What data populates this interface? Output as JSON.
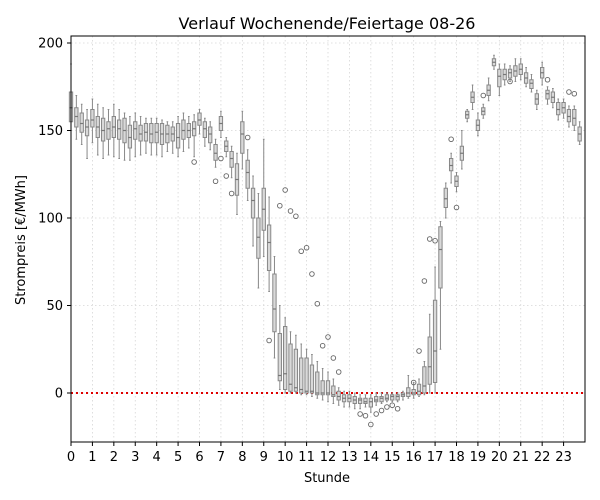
{
  "chart_data": {
    "type": "box",
    "title": "Verlauf Wochenende/Feiertage 08-26",
    "xlabel": "Stunde",
    "ylabel": "Strompreis [€/MWh]",
    "xlim": [
      0,
      24
    ],
    "ylim": [
      -28,
      204
    ],
    "x_ticks": [
      "0",
      "1",
      "2",
      "3",
      "4",
      "5",
      "6",
      "7",
      "8",
      "9",
      "10",
      "11",
      "12",
      "13",
      "14",
      "15",
      "16",
      "17",
      "18",
      "19",
      "20",
      "21",
      "22",
      "23"
    ],
    "y_ticks": [
      0,
      50,
      100,
      150,
      200
    ],
    "grid": true,
    "reference_line": {
      "y": 0,
      "color": "#e00000",
      "style": "dotted"
    },
    "colors": {
      "box_fill": "#d9d9d9",
      "box_edge": "#888888",
      "grid": "#d6d6d6",
      "reference": "#e00000"
    },
    "interval_hours": 0.25,
    "boxes": [
      {
        "x": 0.0,
        "q1": 155,
        "median": 163,
        "q3": 172,
        "whisker_low": 150,
        "whisker_high": 188,
        "fliers": []
      },
      {
        "x": 0.25,
        "q1": 152,
        "median": 158,
        "q3": 163,
        "whisker_low": 145,
        "whisker_high": 170,
        "fliers": []
      },
      {
        "x": 0.5,
        "q1": 149,
        "median": 154,
        "q3": 160,
        "whisker_low": 142,
        "whisker_high": 165,
        "fliers": []
      },
      {
        "x": 0.75,
        "q1": 147,
        "median": 152,
        "q3": 156,
        "whisker_low": 134,
        "whisker_high": 162,
        "fliers": []
      },
      {
        "x": 1.0,
        "q1": 152,
        "median": 156,
        "q3": 162,
        "whisker_low": 143,
        "whisker_high": 168,
        "fliers": []
      },
      {
        "x": 1.25,
        "q1": 146,
        "median": 152,
        "q3": 158,
        "whisker_low": 136,
        "whisker_high": 165,
        "fliers": []
      },
      {
        "x": 1.5,
        "q1": 144,
        "median": 150,
        "q3": 157,
        "whisker_low": 134,
        "whisker_high": 163,
        "fliers": []
      },
      {
        "x": 1.75,
        "q1": 145,
        "median": 151,
        "q3": 155,
        "whisker_low": 136,
        "whisker_high": 162,
        "fliers": []
      },
      {
        "x": 2.0,
        "q1": 146,
        "median": 152,
        "q3": 158,
        "whisker_low": 135,
        "whisker_high": 165,
        "fliers": []
      },
      {
        "x": 2.25,
        "q1": 145,
        "median": 151,
        "q3": 156,
        "whisker_low": 134,
        "whisker_high": 162,
        "fliers": []
      },
      {
        "x": 2.5,
        "q1": 143,
        "median": 150,
        "q3": 157,
        "whisker_low": 133,
        "whisker_high": 160,
        "fliers": []
      },
      {
        "x": 2.75,
        "q1": 140,
        "median": 146,
        "q3": 153,
        "whisker_low": 133,
        "whisker_high": 158,
        "fliers": []
      },
      {
        "x": 3.0,
        "q1": 145,
        "median": 151,
        "q3": 155,
        "whisker_low": 135,
        "whisker_high": 160,
        "fliers": []
      },
      {
        "x": 3.25,
        "q1": 144,
        "median": 148,
        "q3": 153,
        "whisker_low": 136,
        "whisker_high": 158,
        "fliers": []
      },
      {
        "x": 3.5,
        "q1": 144,
        "median": 149,
        "q3": 154,
        "whisker_low": 137,
        "whisker_high": 157,
        "fliers": []
      },
      {
        "x": 3.75,
        "q1": 143,
        "median": 148,
        "q3": 154,
        "whisker_low": 136,
        "whisker_high": 157,
        "fliers": []
      },
      {
        "x": 4.0,
        "q1": 143,
        "median": 149,
        "q3": 154,
        "whisker_low": 136,
        "whisker_high": 157,
        "fliers": []
      },
      {
        "x": 4.25,
        "q1": 142,
        "median": 148,
        "q3": 154,
        "whisker_low": 135,
        "whisker_high": 156,
        "fliers": []
      },
      {
        "x": 4.5,
        "q1": 143,
        "median": 148,
        "q3": 153,
        "whisker_low": 138,
        "whisker_high": 155,
        "fliers": []
      },
      {
        "x": 4.75,
        "q1": 144,
        "median": 148,
        "q3": 152,
        "whisker_low": 137,
        "whisker_high": 155,
        "fliers": []
      },
      {
        "x": 5.0,
        "q1": 140,
        "median": 146,
        "q3": 154,
        "whisker_low": 135,
        "whisker_high": 158,
        "fliers": []
      },
      {
        "x": 5.25,
        "q1": 145,
        "median": 150,
        "q3": 156,
        "whisker_low": 138,
        "whisker_high": 160,
        "fliers": []
      },
      {
        "x": 5.5,
        "q1": 146,
        "median": 150,
        "q3": 154,
        "whisker_low": 140,
        "whisker_high": 158,
        "fliers": []
      },
      {
        "x": 5.75,
        "q1": 147,
        "median": 151,
        "q3": 155,
        "whisker_low": 135,
        "whisker_high": 159,
        "fliers": [
          132
        ]
      },
      {
        "x": 6.0,
        "q1": 153,
        "median": 156,
        "q3": 160,
        "whisker_low": 148,
        "whisker_high": 162,
        "fliers": []
      },
      {
        "x": 6.25,
        "q1": 146,
        "median": 151,
        "q3": 155,
        "whisker_low": 141,
        "whisker_high": 157,
        "fliers": []
      },
      {
        "x": 6.5,
        "q1": 143,
        "median": 148,
        "q3": 152,
        "whisker_low": 139,
        "whisker_high": 155,
        "fliers": []
      },
      {
        "x": 6.75,
        "q1": 133,
        "median": 137,
        "q3": 142,
        "whisker_low": 129,
        "whisker_high": 145,
        "fliers": [
          121
        ]
      },
      {
        "x": 7.0,
        "q1": 150,
        "median": 154,
        "q3": 158,
        "whisker_low": 146,
        "whisker_high": 161,
        "fliers": [
          134
        ]
      },
      {
        "x": 7.25,
        "q1": 138,
        "median": 141,
        "q3": 144,
        "whisker_low": 135,
        "whisker_high": 146,
        "fliers": [
          124
        ]
      },
      {
        "x": 7.5,
        "q1": 129,
        "median": 134,
        "q3": 138,
        "whisker_low": 123,
        "whisker_high": 141,
        "fliers": [
          114
        ]
      },
      {
        "x": 7.75,
        "q1": 113,
        "median": 122,
        "q3": 131,
        "whisker_low": 102,
        "whisker_high": 137,
        "fliers": []
      },
      {
        "x": 8.0,
        "q1": 137,
        "median": 148,
        "q3": 155,
        "whisker_low": 128,
        "whisker_high": 161,
        "fliers": []
      },
      {
        "x": 8.25,
        "q1": 117,
        "median": 126,
        "q3": 133,
        "whisker_low": 110,
        "whisker_high": 139,
        "fliers": [
          146
        ]
      },
      {
        "x": 8.5,
        "q1": 100,
        "median": 110,
        "q3": 117,
        "whisker_low": 84,
        "whisker_high": 124,
        "fliers": []
      },
      {
        "x": 8.75,
        "q1": 77,
        "median": 89,
        "q3": 100,
        "whisker_low": 60,
        "whisker_high": 114,
        "fliers": []
      },
      {
        "x": 9.0,
        "q1": 93,
        "median": 105,
        "q3": 117,
        "whisker_low": 78,
        "whisker_high": 145,
        "fliers": []
      },
      {
        "x": 9.25,
        "q1": 70,
        "median": 86,
        "q3": 96,
        "whisker_low": 58,
        "whisker_high": 112,
        "fliers": [
          30
        ]
      },
      {
        "x": 9.5,
        "q1": 35,
        "median": 48,
        "q3": 68,
        "whisker_low": 20,
        "whisker_high": 78,
        "fliers": []
      },
      {
        "x": 9.75,
        "q1": 7,
        "median": 10,
        "q3": 34,
        "whisker_low": 2,
        "whisker_high": 50,
        "fliers": [
          107
        ]
      },
      {
        "x": 10.0,
        "q1": 2,
        "median": 11,
        "q3": 38,
        "whisker_low": 0,
        "whisker_high": 43,
        "fliers": [
          116
        ]
      },
      {
        "x": 10.25,
        "q1": 1,
        "median": 5,
        "q3": 28,
        "whisker_low": 0,
        "whisker_high": 35,
        "fliers": [
          104
        ]
      },
      {
        "x": 10.5,
        "q1": 1,
        "median": 3,
        "q3": 25,
        "whisker_low": 0,
        "whisker_high": 33,
        "fliers": [
          101
        ]
      },
      {
        "x": 10.75,
        "q1": 0,
        "median": 2,
        "q3": 20,
        "whisker_low": -1,
        "whisker_high": 28,
        "fliers": [
          81
        ]
      },
      {
        "x": 11.0,
        "q1": 0,
        "median": 1,
        "q3": 20,
        "whisker_low": -1,
        "whisker_high": 25,
        "fliers": [
          83
        ]
      },
      {
        "x": 11.25,
        "q1": 0,
        "median": 1,
        "q3": 16,
        "whisker_low": -2,
        "whisker_high": 22,
        "fliers": [
          68
        ]
      },
      {
        "x": 11.5,
        "q1": -1,
        "median": 0,
        "q3": 12,
        "whisker_low": -3,
        "whisker_high": 18,
        "fliers": [
          51
        ]
      },
      {
        "x": 11.75,
        "q1": -1,
        "median": 0,
        "q3": 7,
        "whisker_low": -4,
        "whisker_high": 14,
        "fliers": [
          27
        ]
      },
      {
        "x": 12.0,
        "q1": -1,
        "median": 0,
        "q3": 7,
        "whisker_low": -5,
        "whisker_high": 12,
        "fliers": [
          32
        ]
      },
      {
        "x": 12.25,
        "q1": -2,
        "median": -1,
        "q3": 4,
        "whisker_low": -6,
        "whisker_high": 8,
        "fliers": [
          20
        ]
      },
      {
        "x": 12.5,
        "q1": -4,
        "median": -2,
        "q3": 1,
        "whisker_low": -7,
        "whisker_high": 3,
        "fliers": [
          12
        ]
      },
      {
        "x": 12.75,
        "q1": -5,
        "median": -3,
        "q3": -1,
        "whisker_low": -8,
        "whisker_high": 1,
        "fliers": []
      },
      {
        "x": 13.0,
        "q1": -5,
        "median": -3,
        "q3": -1,
        "whisker_low": -8,
        "whisker_high": 1,
        "fliers": []
      },
      {
        "x": 13.25,
        "q1": -6,
        "median": -4,
        "q3": -2,
        "whisker_low": -9,
        "whisker_high": 0,
        "fliers": []
      },
      {
        "x": 13.5,
        "q1": -6,
        "median": -4,
        "q3": -3,
        "whisker_low": -9,
        "whisker_high": -1,
        "fliers": [
          -12
        ]
      },
      {
        "x": 13.75,
        "q1": -6,
        "median": -5,
        "q3": -3,
        "whisker_low": -8,
        "whisker_high": -1,
        "fliers": [
          -13
        ]
      },
      {
        "x": 14.0,
        "q1": -8,
        "median": -5,
        "q3": -3,
        "whisker_low": -11,
        "whisker_high": -1,
        "fliers": [
          -18
        ]
      },
      {
        "x": 14.25,
        "q1": -5,
        "median": -4,
        "q3": -2,
        "whisker_low": -7,
        "whisker_high": 0,
        "fliers": [
          -12
        ]
      },
      {
        "x": 14.5,
        "q1": -5,
        "median": -3,
        "q3": -2,
        "whisker_low": -6,
        "whisker_high": 0,
        "fliers": [
          -10
        ]
      },
      {
        "x": 14.75,
        "q1": -4,
        "median": -3,
        "q3": -1,
        "whisker_low": -5,
        "whisker_high": 0,
        "fliers": [
          -8
        ]
      },
      {
        "x": 15.0,
        "q1": -4,
        "median": -2,
        "q3": -1,
        "whisker_low": -5,
        "whisker_high": 0,
        "fliers": [
          -7
        ]
      },
      {
        "x": 15.25,
        "q1": -4,
        "median": -2,
        "q3": -1,
        "whisker_low": -5,
        "whisker_high": 0,
        "fliers": [
          -9
        ]
      },
      {
        "x": 15.5,
        "q1": -2,
        "median": -1,
        "q3": 0,
        "whisker_low": -4,
        "whisker_high": 1,
        "fliers": []
      },
      {
        "x": 15.75,
        "q1": -2,
        "median": 0,
        "q3": 3,
        "whisker_low": -3,
        "whisker_high": 10,
        "fliers": []
      },
      {
        "x": 16.0,
        "q1": -1,
        "median": 0,
        "q3": 2,
        "whisker_low": -3,
        "whisker_high": 6,
        "fliers": [
          6
        ]
      },
      {
        "x": 16.25,
        "q1": -1,
        "median": 1,
        "q3": 5,
        "whisker_low": -2,
        "whisker_high": 8,
        "fliers": [
          24
        ]
      },
      {
        "x": 16.5,
        "q1": 0,
        "median": 4,
        "q3": 15,
        "whisker_low": -1,
        "whisker_high": 18,
        "fliers": [
          64
        ]
      },
      {
        "x": 16.75,
        "q1": 5,
        "median": 15,
        "q3": 32,
        "whisker_low": 0,
        "whisker_high": 45,
        "fliers": [
          88
        ]
      },
      {
        "x": 17.0,
        "q1": 6,
        "median": 24,
        "q3": 53,
        "whisker_low": 0,
        "whisker_high": 72,
        "fliers": [
          87
        ]
      },
      {
        "x": 17.25,
        "q1": 60,
        "median": 82,
        "q3": 95,
        "whisker_low": 25,
        "whisker_high": 98,
        "fliers": []
      },
      {
        "x": 17.5,
        "q1": 106,
        "median": 111,
        "q3": 117,
        "whisker_low": 100,
        "whisker_high": 120,
        "fliers": []
      },
      {
        "x": 17.75,
        "q1": 127,
        "median": 130,
        "q3": 134,
        "whisker_low": 120,
        "whisker_high": 137,
        "fliers": [
          145
        ]
      },
      {
        "x": 18.0,
        "q1": 118,
        "median": 121,
        "q3": 124,
        "whisker_low": 115,
        "whisker_high": 126,
        "fliers": [
          106
        ]
      },
      {
        "x": 18.25,
        "q1": 133,
        "median": 137,
        "q3": 141,
        "whisker_low": 128,
        "whisker_high": 150,
        "fliers": []
      },
      {
        "x": 18.5,
        "q1": 157,
        "median": 159,
        "q3": 161,
        "whisker_low": 155,
        "whisker_high": 162,
        "fliers": []
      },
      {
        "x": 18.75,
        "q1": 166,
        "median": 169,
        "q3": 172,
        "whisker_low": 162,
        "whisker_high": 176,
        "fliers": []
      },
      {
        "x": 19.0,
        "q1": 150,
        "median": 153,
        "q3": 156,
        "whisker_low": 147,
        "whisker_high": 160,
        "fliers": []
      },
      {
        "x": 19.25,
        "q1": 159,
        "median": 161,
        "q3": 163,
        "whisker_low": 157,
        "whisker_high": 165,
        "fliers": [
          170
        ]
      },
      {
        "x": 19.5,
        "q1": 170,
        "median": 173,
        "q3": 176,
        "whisker_low": 167,
        "whisker_high": 180,
        "fliers": []
      },
      {
        "x": 19.75,
        "q1": 187,
        "median": 189,
        "q3": 191,
        "whisker_low": 185,
        "whisker_high": 193,
        "fliers": []
      },
      {
        "x": 20.0,
        "q1": 175,
        "median": 181,
        "q3": 185,
        "whisker_low": 170,
        "whisker_high": 188,
        "fliers": []
      },
      {
        "x": 20.25,
        "q1": 179,
        "median": 182,
        "q3": 185,
        "whisker_low": 176,
        "whisker_high": 188,
        "fliers": []
      },
      {
        "x": 20.5,
        "q1": 180,
        "median": 183,
        "q3": 185,
        "whisker_low": 178,
        "whisker_high": 187,
        "fliers": [
          178
        ]
      },
      {
        "x": 20.75,
        "q1": 181,
        "median": 184,
        "q3": 187,
        "whisker_low": 178,
        "whisker_high": 191,
        "fliers": []
      },
      {
        "x": 21.0,
        "q1": 182,
        "median": 185,
        "q3": 188,
        "whisker_low": 179,
        "whisker_high": 191,
        "fliers": []
      },
      {
        "x": 21.25,
        "q1": 177,
        "median": 180,
        "q3": 183,
        "whisker_low": 175,
        "whisker_high": 186,
        "fliers": []
      },
      {
        "x": 21.5,
        "q1": 174,
        "median": 177,
        "q3": 179,
        "whisker_low": 172,
        "whisker_high": 182,
        "fliers": []
      },
      {
        "x": 21.75,
        "q1": 165,
        "median": 168,
        "q3": 171,
        "whisker_low": 162,
        "whisker_high": 173,
        "fliers": []
      },
      {
        "x": 22.0,
        "q1": 180,
        "median": 183,
        "q3": 186,
        "whisker_low": 176,
        "whisker_high": 189,
        "fliers": []
      },
      {
        "x": 22.25,
        "q1": 168,
        "median": 171,
        "q3": 173,
        "whisker_low": 165,
        "whisker_high": 175,
        "fliers": [
          179
        ]
      },
      {
        "x": 22.5,
        "q1": 166,
        "median": 169,
        "q3": 172,
        "whisker_low": 163,
        "whisker_high": 174,
        "fliers": []
      },
      {
        "x": 22.75,
        "q1": 159,
        "median": 162,
        "q3": 166,
        "whisker_low": 156,
        "whisker_high": 168,
        "fliers": []
      },
      {
        "x": 23.0,
        "q1": 160,
        "median": 163,
        "q3": 166,
        "whisker_low": 157,
        "whisker_high": 168,
        "fliers": []
      },
      {
        "x": 23.25,
        "q1": 155,
        "median": 158,
        "q3": 162,
        "whisker_low": 152,
        "whisker_high": 164,
        "fliers": [
          172
        ]
      },
      {
        "x": 23.5,
        "q1": 153,
        "median": 157,
        "q3": 162,
        "whisker_low": 150,
        "whisker_high": 164,
        "fliers": [
          171
        ]
      },
      {
        "x": 23.75,
        "q1": 144,
        "median": 148,
        "q3": 152,
        "whisker_low": 142,
        "whisker_high": 155,
        "fliers": []
      }
    ]
  }
}
